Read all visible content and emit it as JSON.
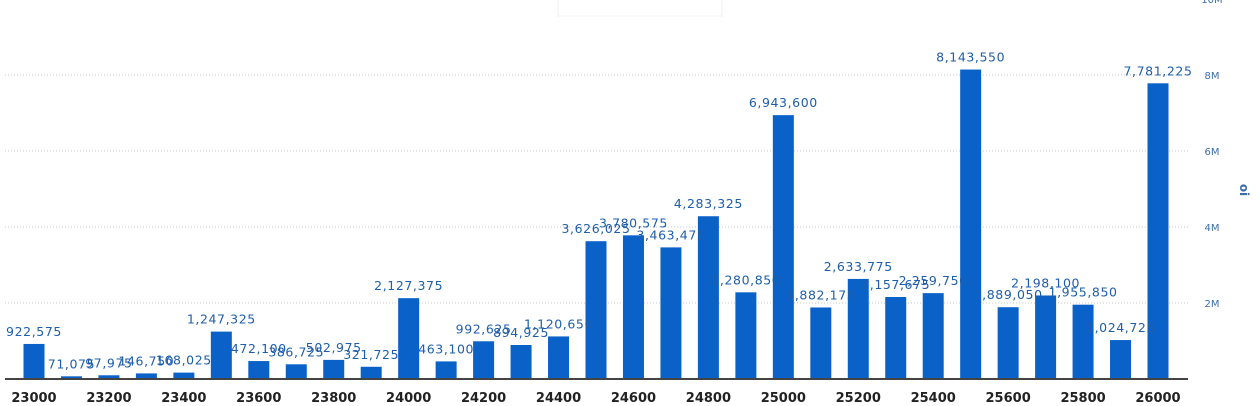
{
  "chart_data": {
    "type": "bar",
    "ylabel": "oi",
    "ylim": [
      0,
      10000000
    ],
    "yticks": [
      2000000,
      4000000,
      6000000,
      8000000,
      10000000
    ],
    "ytick_labels": [
      "2M",
      "4M",
      "6M",
      "8M",
      "10M"
    ],
    "grid": true,
    "bar_color": "#0a62c9",
    "x_tick_labels": [
      "23000",
      "23200",
      "23400",
      "23600",
      "23800",
      "24000",
      "24200",
      "24400",
      "24600",
      "24800",
      "25000",
      "25200",
      "25400",
      "25600",
      "25800",
      "26000"
    ],
    "categories": [
      23000,
      23100,
      23200,
      23300,
      23400,
      23500,
      23600,
      23700,
      23800,
      23900,
      24000,
      24100,
      24200,
      24300,
      24400,
      24500,
      24600,
      24700,
      24800,
      24900,
      25000,
      25100,
      25200,
      25300,
      25400,
      25500,
      25600,
      25700,
      25800,
      25900,
      26000
    ],
    "values": [
      922575,
      71075,
      97975,
      146750,
      168025,
      1247325,
      472100,
      386725,
      502975,
      321725,
      2127375,
      463100,
      992625,
      894925,
      1120650,
      3626025,
      3780575,
      3463475,
      4283325,
      2280850,
      6943600,
      1882175,
      2633775,
      2157675,
      2259750,
      8143550,
      1889050,
      2198100,
      1955850,
      1024725,
      7781225
    ],
    "labels": [
      "922,575",
      "71,075",
      "97,975",
      "146,750",
      "168,025",
      "1,247,325",
      "472,100",
      "386,725",
      "502,975",
      "321,725",
      "2,127,375",
      "463,100",
      "992,625",
      "894,925",
      "1,120,650",
      "3,626,025",
      "3,780,575",
      "3,463,475",
      "4,283,325",
      "2,280,850",
      "6,943,600",
      "1,882,175",
      "2,633,775",
      "2,157,675",
      "2,259,750",
      "8,143,550",
      "1,889,050",
      "2,198,100",
      "1,955,850",
      "1,024,725",
      "7,781,225"
    ]
  }
}
